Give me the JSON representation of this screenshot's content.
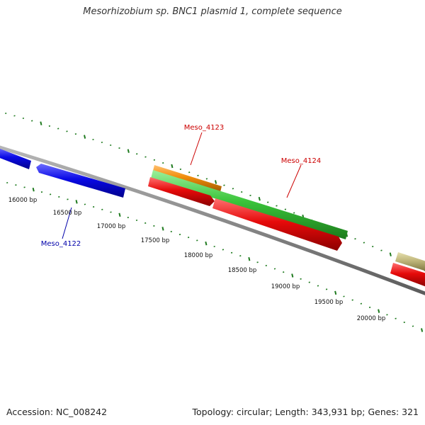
{
  "title": "Mesorhizobium sp. BNC1 plasmid 1, complete sequence",
  "footer": {
    "accession": "Accession: NC_008242",
    "topology": "Topology: circular; Length: 343,931 bp; Genes: 321"
  },
  "colors": {
    "backbone": "#8a8a8a",
    "tick_mark": "#1e7a1e",
    "gene_blue": "#0a0ae6",
    "gene_red": "#e60a0a",
    "gene_green": "#3ac43a",
    "gene_orange": "#f08c0a",
    "gene_khaki": "#bfb67a",
    "label_red": "#cc0000",
    "label_blue": "#0000aa"
  },
  "scale_labels": [
    "16000 bp",
    "16500 bp",
    "17000 bp",
    "17500 bp",
    "18000 bp",
    "18500 bp",
    "19000 bp",
    "19500 bp",
    "20000 bp"
  ],
  "gene_labels": [
    {
      "text": "Meso_4123",
      "color": "#cc0000"
    },
    {
      "text": "Meso_4124",
      "color": "#cc0000"
    },
    {
      "text": "Meso_4122",
      "color": "#0000aa"
    }
  ]
}
